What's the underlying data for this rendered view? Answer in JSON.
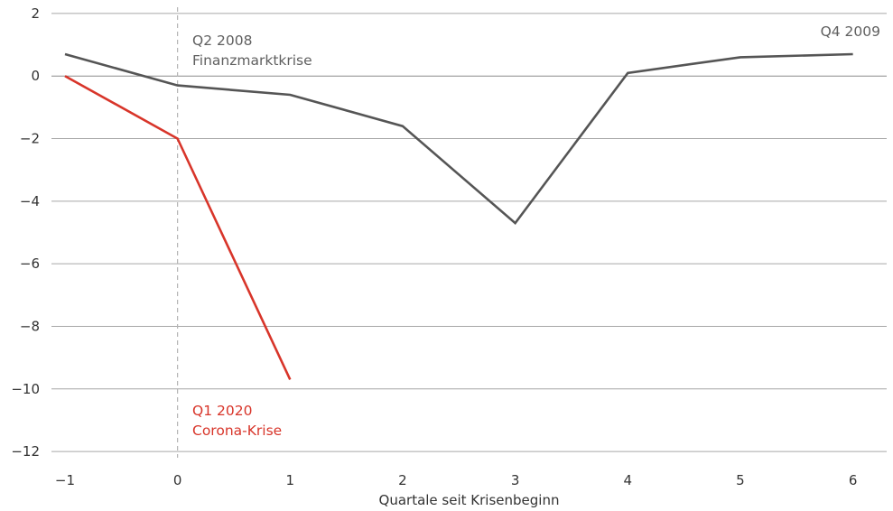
{
  "chart_data": {
    "type": "line",
    "title": "",
    "xlabel": "Quartale seit Krisenbeginn",
    "ylabel": "",
    "xlim": [
      -1.12,
      6.3
    ],
    "ylim": [
      -12.2,
      2.2
    ],
    "x_ticks": [
      -1,
      0,
      1,
      2,
      3,
      4,
      5,
      6
    ],
    "x_tick_labels": [
      "−1",
      "0",
      "1",
      "2",
      "3",
      "4",
      "5",
      "6"
    ],
    "y_ticks": [
      2,
      0,
      -2,
      -4,
      -6,
      -8,
      -10,
      -12
    ],
    "y_tick_labels": [
      "2",
      "0",
      "−2",
      "−4",
      "−6",
      "−8",
      "−10",
      "−12"
    ],
    "grid": "horizontal",
    "series": [
      {
        "color": "#555555",
        "x": [
          -1,
          0,
          1,
          2,
          3,
          4,
          5,
          6
        ],
        "y": [
          0.7,
          -0.3,
          -0.6,
          -1.6,
          -4.7,
          0.1,
          0.6,
          0.7
        ]
      },
      {
        "color": "#d8352a",
        "x": [
          -1,
          0,
          1
        ],
        "y": [
          0.0,
          -2.0,
          -9.7
        ]
      }
    ],
    "reference_line": {
      "x": 0
    },
    "annotations": [
      {
        "id": "fin",
        "lines": [
          "Q2 2008",
          "Finanzmarktkrise"
        ],
        "color": "#606060"
      },
      {
        "id": "q4",
        "lines": [
          "Q4 2009"
        ],
        "color": "#606060"
      },
      {
        "id": "corona",
        "lines": [
          "Q1 2020",
          "Corona-Krise"
        ],
        "color": "#d8352a"
      }
    ]
  }
}
